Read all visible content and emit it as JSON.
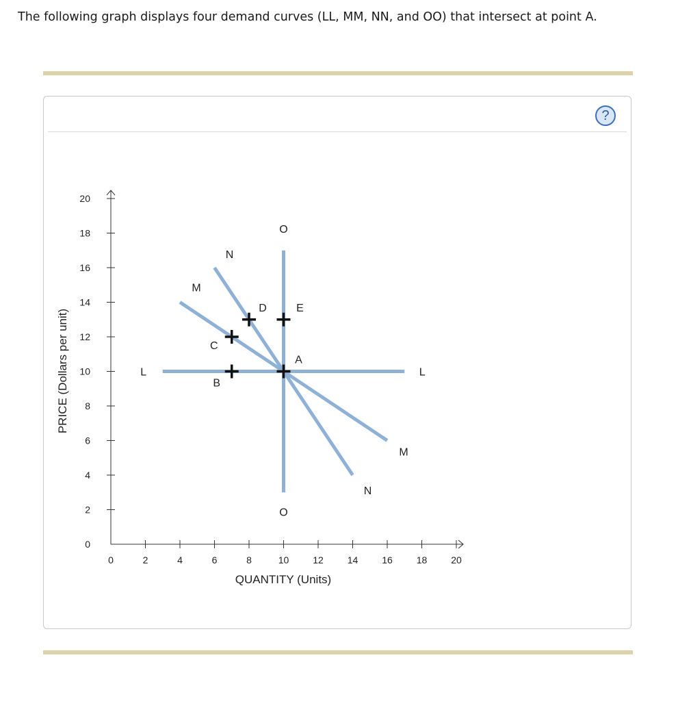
{
  "intro_text": "The following graph displays four demand curves (LL, MM, NN, and OO) that intersect at point A.",
  "help_icon": "help-question-icon",
  "colors": {
    "curve": "#8fb1d5",
    "axis": "#333333",
    "rule": "#dcd3a8"
  },
  "chart_data": {
    "type": "line",
    "xlabel": "QUANTITY (Units)",
    "ylabel": "PRICE (Dollars per unit)",
    "xlim": [
      0,
      20
    ],
    "ylim": [
      0,
      20
    ],
    "xticks": [
      0,
      2,
      4,
      6,
      8,
      10,
      12,
      14,
      16,
      18,
      20
    ],
    "yticks": [
      0,
      2,
      4,
      6,
      8,
      10,
      12,
      14,
      16,
      18,
      20
    ],
    "grid": false,
    "series": [
      {
        "name": "L",
        "points": [
          [
            3,
            10
          ],
          [
            17,
            10
          ]
        ],
        "labels": [
          "L",
          "L"
        ]
      },
      {
        "name": "M",
        "points": [
          [
            4,
            14
          ],
          [
            16,
            6
          ]
        ],
        "labels": [
          "M",
          "M"
        ]
      },
      {
        "name": "N",
        "points": [
          [
            6,
            16
          ],
          [
            14,
            4
          ]
        ],
        "labels": [
          "N",
          "N"
        ]
      },
      {
        "name": "O",
        "points": [
          [
            10,
            17
          ],
          [
            10,
            3
          ]
        ],
        "labels": [
          "O",
          "O"
        ]
      }
    ],
    "points": [
      {
        "label": "A",
        "x": 10,
        "y": 10
      },
      {
        "label": "B",
        "x": 7,
        "y": 10
      },
      {
        "label": "C",
        "x": 7,
        "y": 12
      },
      {
        "label": "D",
        "x": 8,
        "y": 13
      },
      {
        "label": "E",
        "x": 10,
        "y": 13
      }
    ]
  }
}
